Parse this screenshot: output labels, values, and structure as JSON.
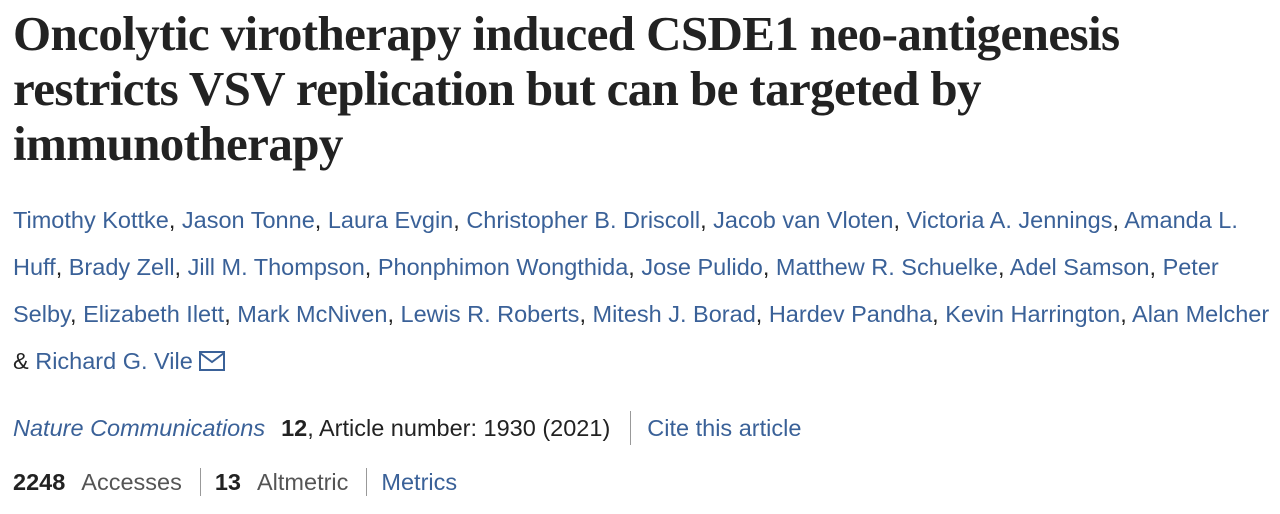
{
  "title_lines": [
    "Oncolytic virotherapy induced CSDE1 neo-antigenesis",
    "restricts VSV replication but can be targeted by",
    "immunotherapy"
  ],
  "authors": [
    "Timothy Kottke",
    "Jason Tonne",
    "Laura Evgin",
    "Christopher B. Driscoll",
    "Jacob van Vloten",
    "Victoria A. Jennings",
    "Amanda L. Huff",
    "Brady Zell",
    "Jill M. Thompson",
    "Phonphimon Wongthida",
    "Jose Pulido",
    "Matthew R. Schuelke",
    "Adel Samson",
    "Peter Selby",
    "Elizabeth Ilett",
    "Mark McNiven",
    "Lewis R. Roberts",
    "Mitesh J. Borad",
    "Hardev Pandha",
    "Kevin Harrington",
    "Alan Melcher",
    "Richard G. Vile"
  ],
  "author_separator": ",",
  "last_author_separator": "&",
  "citation": {
    "journal": "Nature Communications",
    "volume": "12",
    "details": ", Article number: 1930 (2021)",
    "cite_link": "Cite this article"
  },
  "metrics": {
    "items": [
      {
        "value": "2248",
        "label": "Accesses"
      },
      {
        "value": "13",
        "label": "Altmetric"
      }
    ],
    "link": "Metrics"
  }
}
